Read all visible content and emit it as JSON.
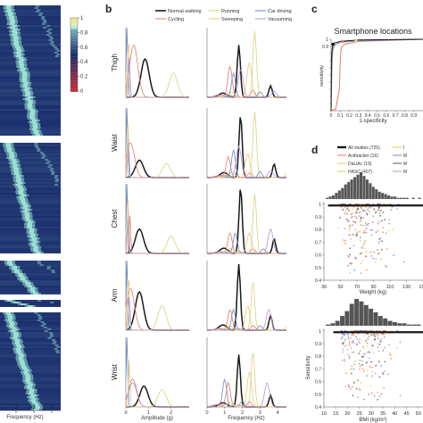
{
  "panel_labels": {
    "b": "b",
    "c": "c",
    "d": "d"
  },
  "colors": {
    "normal_walking": "#1a1a1a",
    "cycling": "#e07b6e",
    "running": "#d9d27a",
    "sweeping": "#e8c97a",
    "car_driving": "#6d86c6",
    "vacuuming": "#b596c9",
    "heat_low": "#c92d35",
    "heat_mid": "#1b2f6e",
    "heat_high": "#9fe7d6",
    "scatter_orange": "#e88a48",
    "scatter_yellow": "#e3cc55",
    "scatter_grey": "#555555",
    "hist_grey": "#555555"
  },
  "chart_data": [
    {
      "type": "heatmap",
      "xlabel": "Frequency (Hz)",
      "xticks": [
        "2",
        "3",
        "4"
      ],
      "colorbar_ticks": [
        "1",
        "0.8",
        "0.6",
        "0.4",
        "0.2",
        "0"
      ],
      "colorbar_range": [
        0,
        1
      ],
      "rows": "bands of recordings, each band ordered by peak frequency"
    },
    {
      "type": "line",
      "legend": [
        {
          "name": "Normal walking",
          "color_key": "normal_walking"
        },
        {
          "name": "Running",
          "color_key": "running"
        },
        {
          "name": "Car driving",
          "color_key": "car_driving"
        },
        {
          "name": "Cycling",
          "color_key": "cycling"
        },
        {
          "name": "Sweeping",
          "color_key": "sweeping"
        },
        {
          "name": "Vacuuming",
          "color_key": "vacuuming"
        }
      ],
      "row_labels": [
        "Thigh",
        "Waist",
        "Chest",
        "Arm",
        "Wrist"
      ],
      "left_xlabel": "Amplitude (g)",
      "left_xticks": [
        "0",
        "1",
        "2"
      ],
      "left_xlim": [
        0,
        2.8
      ],
      "right_xlabel": "Frequency (Hz)",
      "right_xticks": [
        "0",
        "1",
        "2",
        "3",
        "4"
      ],
      "right_xlim": [
        0,
        4.5
      ],
      "amplitude_peaks": {
        "Thigh": {
          "Normal walking": [
            0.85,
            0.55
          ],
          "Running": [
            2.1,
            0.35
          ],
          "Cycling": [
            0.35,
            0.75
          ],
          "Sweeping": [
            0.12,
            0.9
          ],
          "Car driving": [
            0.05,
            1.0
          ],
          "Vacuuming": [
            0.15,
            0.6
          ]
        },
        "Waist": {
          "Normal walking": [
            0.6,
            0.25
          ],
          "Running": [
            1.8,
            0.2
          ],
          "Cycling": [
            0.2,
            0.5
          ],
          "Sweeping": [
            0.1,
            0.8
          ],
          "Car driving": [
            0.05,
            1.0
          ],
          "Vacuuming": [
            0.12,
            0.45
          ]
        },
        "Chest": {
          "Normal walking": [
            0.6,
            0.35
          ],
          "Running": [
            2.0,
            0.25
          ],
          "Cycling": [
            0.18,
            0.55
          ],
          "Sweeping": [
            0.1,
            0.8
          ],
          "Car driving": [
            0.05,
            1.0
          ],
          "Vacuuming": [
            0.1,
            0.5
          ]
        },
        "Arm": {
          "Normal walking": [
            0.6,
            0.55
          ],
          "Running": [
            1.6,
            0.35
          ],
          "Cycling": [
            0.2,
            0.6
          ],
          "Sweeping": [
            0.12,
            0.85
          ],
          "Car driving": [
            0.05,
            1.0
          ],
          "Vacuuming": [
            0.15,
            0.5
          ]
        },
        "Wrist": {
          "Normal walking": [
            0.8,
            0.3
          ],
          "Running": [
            1.6,
            0.25
          ],
          "Cycling": [
            0.3,
            0.4
          ],
          "Sweeping": [
            0.15,
            0.7
          ],
          "Car driving": [
            0.05,
            1.0
          ],
          "Vacuuming": [
            0.3,
            0.35
          ]
        }
      },
      "frequency_peaks": {
        "Thigh": {
          "Normal walking": [
            1.8,
            0.75
          ],
          "Running": [
            2.7,
            0.95
          ],
          "Cycling": [
            1.3,
            0.45
          ],
          "Sweeping": [
            2.4,
            0.5
          ],
          "Car driving": [
            1.5,
            0.35
          ],
          "Vacuuming": [
            1.9,
            0.4
          ]
        },
        "Waist": {
          "Normal walking": [
            1.9,
            0.9
          ],
          "Running": [
            2.7,
            0.95
          ],
          "Cycling": [
            1.2,
            0.3
          ],
          "Sweeping": [
            2.3,
            0.35
          ],
          "Car driving": [
            1.5,
            0.4
          ],
          "Vacuuming": [
            1.8,
            0.45
          ]
        },
        "Chest": {
          "Normal walking": [
            1.9,
            0.95
          ],
          "Running": [
            2.7,
            0.85
          ],
          "Cycling": [
            1.3,
            0.3
          ],
          "Sweeping": [
            2.4,
            0.3
          ],
          "Car driving": [
            1.6,
            0.3
          ],
          "Vacuuming": [
            3.6,
            0.35
          ]
        },
        "Arm": {
          "Normal walking": [
            1.8,
            0.95
          ],
          "Running": [
            2.6,
            0.7
          ],
          "Cycling": [
            1.3,
            0.3
          ],
          "Sweeping": [
            2.3,
            0.35
          ],
          "Car driving": [
            1.5,
            0.3
          ],
          "Vacuuming": [
            3.5,
            0.3
          ]
        },
        "Wrist": {
          "Normal walking": [
            1.8,
            0.75
          ],
          "Running": [
            2.6,
            0.8
          ],
          "Cycling": [
            1.2,
            0.35
          ],
          "Sweeping": [
            2.4,
            0.5
          ],
          "Car driving": [
            1.0,
            0.4
          ],
          "Vacuuming": [
            3.4,
            0.35
          ]
        }
      }
    },
    {
      "type": "line",
      "title": "Smartphone locations",
      "xlabel": "1-specificity",
      "ylabel": "sensitivity",
      "xticks": [
        "0",
        "0.1",
        "0.2",
        "0.3",
        "0.4",
        "0.5",
        "0.6",
        "0.7",
        "0.8",
        "0.9"
      ],
      "yticks": [
        "0",
        "0.1",
        "0.2",
        "0.3",
        "0.4",
        "0.5",
        "0.6",
        "0.7",
        "0.8",
        "0.9",
        "1"
      ],
      "xlim": [
        0,
        1
      ],
      "ylim": [
        0,
        1
      ],
      "series": [
        {
          "color_key": "cycling",
          "x": [
            0,
            0.05,
            0.09,
            0.1,
            0.11,
            0.15,
            0.3,
            1
          ],
          "y": [
            0,
            0.02,
            0.3,
            0.7,
            0.88,
            0.93,
            0.97,
            1
          ]
        },
        {
          "color_key": "running",
          "x": [
            0,
            0.01,
            0.02,
            0.04,
            0.08,
            0.2,
            0.5,
            1
          ],
          "y": [
            0,
            0.6,
            0.85,
            0.92,
            0.95,
            0.97,
            0.99,
            1
          ]
        },
        {
          "color_key": "car_driving",
          "x": [
            0,
            0.01,
            0.02,
            0.05,
            0.1,
            0.3,
            1
          ],
          "y": [
            0,
            0.7,
            0.88,
            0.93,
            0.96,
            0.98,
            1
          ]
        },
        {
          "color_key": "normal_walking",
          "x": [
            0,
            0.005,
            0.015,
            0.04,
            0.1,
            0.3,
            1
          ],
          "y": [
            0,
            0.75,
            0.9,
            0.95,
            0.97,
            0.99,
            1
          ]
        }
      ],
      "markers": [
        {
          "x": 0.02,
          "y": 0.93,
          "color_key": "normal_walking"
        },
        {
          "x": 0.12,
          "y": 0.97,
          "color_key": "cycling"
        },
        {
          "x": 0.27,
          "y": 0.98,
          "color_key": "running"
        }
      ]
    },
    {
      "type": "scatter",
      "legend": [
        {
          "name": "All studies (725)",
          "color_key": "normal_walking",
          "swatch": "thick"
        },
        {
          "name": "Actitracker (16)",
          "color_key": "cycling"
        },
        {
          "name": "DaLiAc (19)",
          "color_key": "sweeping"
        },
        {
          "name": "HASC (407)",
          "color_key": "running"
        },
        {
          "name": "I",
          "color_key": "scatter_yellow"
        },
        {
          "name": "M",
          "color_key": "car_driving"
        },
        {
          "name": "M",
          "color_key": "scatter_grey"
        },
        {
          "name": "M",
          "color_key": "vacuuming"
        }
      ],
      "plots": [
        {
          "xlabel": "Weight (kg)",
          "ylabel": "",
          "xticks": [
            "30",
            "50",
            "70",
            "90",
            "110",
            "130",
            "150"
          ],
          "yticks": [
            "1",
            "0.9",
            "0.8",
            "0.7",
            "0.6",
            "0.5",
            "0.4"
          ],
          "xlim": [
            30,
            150
          ],
          "ylim": [
            0.4,
            1.02
          ],
          "fit_line": {
            "x": [
              35,
              150
            ],
            "y": [
              0.99,
              0.99
            ]
          },
          "histogram": [
            1,
            2,
            3,
            5,
            7,
            9,
            12,
            14,
            16,
            18,
            20,
            22,
            19,
            16,
            13,
            10,
            8,
            6,
            5,
            4,
            3,
            2,
            2,
            1,
            1,
            1,
            1,
            0,
            1,
            0,
            1
          ]
        },
        {
          "xlabel": "BMI (kg/m²)",
          "ylabel": "Sensitivity",
          "xticks": [
            "10",
            "15",
            "20",
            "25",
            "30",
            "35",
            "40",
            "45",
            "50"
          ],
          "yticks": [
            "1",
            "0.9",
            "0.8",
            "0.7",
            "0.6",
            "0.5",
            "0.4"
          ],
          "xlim": [
            10,
            52
          ],
          "ylim": [
            0.4,
            1.02
          ],
          "fit_line": {
            "x": [
              14,
              52
            ],
            "y": [
              0.99,
              0.99
            ]
          },
          "histogram": [
            1,
            2,
            4,
            8,
            12,
            18,
            22,
            20,
            17,
            14,
            11,
            8,
            6,
            4,
            3,
            2,
            2,
            1,
            1,
            1
          ]
        }
      ]
    }
  ]
}
